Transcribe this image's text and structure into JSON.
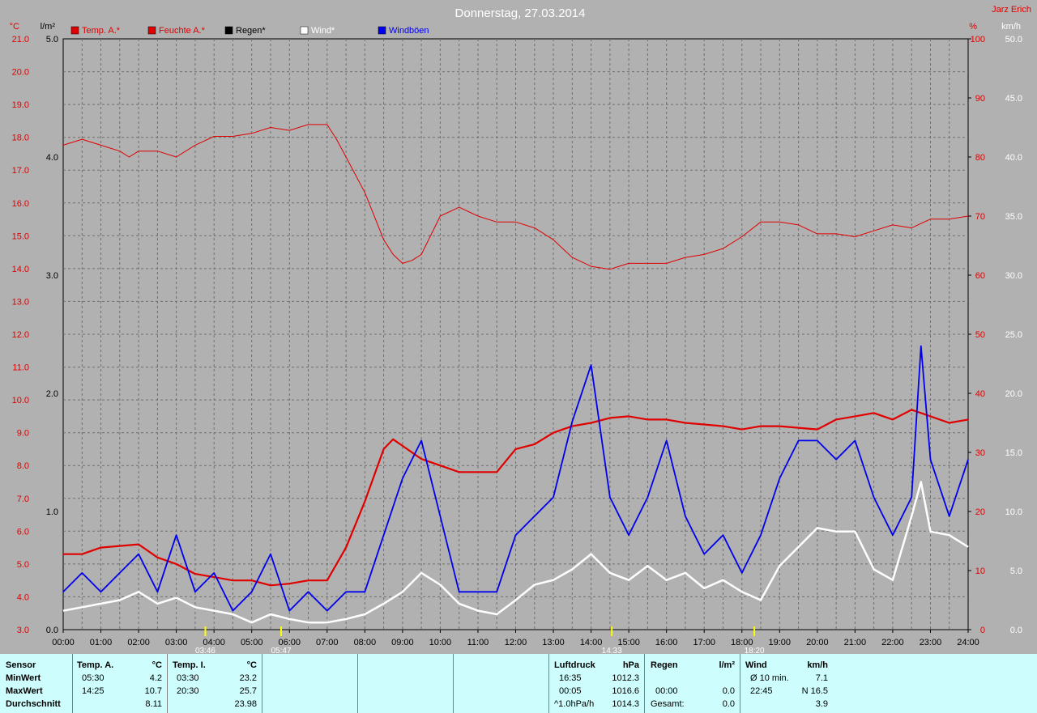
{
  "header": {
    "title": "Donnerstag, 27.03.2014",
    "author": "Jarz Erich"
  },
  "colors": {
    "background": "#b1b1b1",
    "temp": "#e00000",
    "humidity": "#e00000",
    "rain": "#000000",
    "wind": "#ffffff",
    "gusts": "#0000ee",
    "table_bg": "#cdfdfd"
  },
  "chart_data": {
    "type": "line",
    "grid": true,
    "x": {
      "ticks": [
        "00:00",
        "01:00",
        "02:00",
        "03:00",
        "04:00",
        "05:00",
        "06:00",
        "07:00",
        "08:00",
        "09:00",
        "10:00",
        "11:00",
        "12:00",
        "13:00",
        "14:00",
        "15:00",
        "16:00",
        "17:00",
        "18:00",
        "19:00",
        "20:00",
        "21:00",
        "22:00",
        "23:00",
        "24:00"
      ],
      "range": [
        0,
        24
      ]
    },
    "axes": {
      "temp": {
        "unit": "°C",
        "range": [
          3.0,
          21.0
        ],
        "ticks": [
          "3.0",
          "4.0",
          "5.0",
          "6.0",
          "7.0",
          "8.0",
          "9.0",
          "10.0",
          "11.0",
          "12.0",
          "13.0",
          "14.0",
          "15.0",
          "16.0",
          "17.0",
          "18.0",
          "19.0",
          "20.0",
          "21.0"
        ]
      },
      "rain": {
        "unit": "l/m²",
        "range": [
          0,
          5
        ],
        "ticks": [
          "0.0",
          "1.0",
          "2.0",
          "3.0",
          "4.0",
          "5.0"
        ]
      },
      "humidity": {
        "unit": "%",
        "range": [
          0,
          100
        ],
        "ticks": [
          "0",
          "10",
          "20",
          "30",
          "40",
          "50",
          "60",
          "70",
          "80",
          "90",
          "100"
        ]
      },
      "wind": {
        "unit": "km/h",
        "range": [
          0,
          50
        ],
        "ticks": [
          "0.0",
          "5.0",
          "10.0",
          "15.0",
          "20.0",
          "25.0",
          "30.0",
          "35.0",
          "40.0",
          "45.0",
          "50.0"
        ]
      }
    },
    "legend": [
      {
        "name": "Temp. A.*",
        "color": "#e00000"
      },
      {
        "name": "Feuchte A.*",
        "color": "#e00000"
      },
      {
        "name": "Regen*",
        "color": "#000000"
      },
      {
        "name": "Wind*",
        "color": "#ffffff"
      },
      {
        "name": "Windböen",
        "color": "#0000ee"
      }
    ],
    "series": [
      {
        "name": "Feuchte A.*",
        "axis": "humidity",
        "x": [
          0,
          0.5,
          1,
          1.5,
          1.75,
          2,
          2.5,
          3,
          3.5,
          4,
          4.5,
          5,
          5.5,
          6,
          6.5,
          7,
          7.25,
          7.5,
          8,
          8.5,
          8.75,
          9,
          9.25,
          9.5,
          10,
          10.5,
          11,
          11.5,
          12,
          12.5,
          13,
          13.5,
          14,
          14.5,
          15,
          15.5,
          16,
          16.5,
          17,
          17.5,
          18,
          18.5,
          19,
          19.5,
          20,
          20.5,
          21,
          21.5,
          22,
          22.5,
          23,
          23.5,
          24
        ],
        "y": [
          82,
          83,
          82,
          81,
          80,
          81,
          81,
          80,
          82,
          83.5,
          83.5,
          84,
          85,
          84.5,
          85.5,
          85.5,
          83,
          80,
          74,
          66,
          63.5,
          62,
          62.5,
          63.5,
          70,
          71.5,
          70,
          69,
          69,
          68,
          66,
          63,
          61.5,
          61,
          62,
          62,
          62,
          63,
          63.5,
          64.5,
          66.5,
          69,
          69,
          68.5,
          67,
          67,
          66.5,
          67.5,
          68.5,
          68,
          69.5,
          69.5,
          70
        ]
      },
      {
        "name": "Temp. A.*",
        "axis": "temp",
        "x": [
          0,
          0.5,
          1,
          1.5,
          2,
          2.5,
          3,
          3.5,
          4,
          4.5,
          5,
          5.5,
          6,
          6.5,
          7,
          7.5,
          8,
          8.5,
          8.75,
          9,
          9.5,
          10,
          10.5,
          11,
          11.5,
          12,
          12.5,
          13,
          13.5,
          14,
          14.5,
          15,
          15.5,
          16,
          16.5,
          17,
          17.5,
          18,
          18.5,
          19,
          19.5,
          20,
          20.5,
          21,
          21.5,
          22,
          22.5,
          23,
          23.5,
          24
        ],
        "y": [
          5.3,
          5.3,
          5.5,
          5.55,
          5.6,
          5.2,
          5.0,
          4.7,
          4.6,
          4.5,
          4.5,
          4.35,
          4.4,
          4.5,
          4.5,
          5.5,
          6.9,
          8.5,
          8.8,
          8.6,
          8.2,
          8.0,
          7.8,
          7.8,
          7.8,
          8.5,
          8.65,
          9.0,
          9.2,
          9.3,
          9.45,
          9.5,
          9.4,
          9.4,
          9.3,
          9.25,
          9.2,
          9.1,
          9.2,
          9.2,
          9.15,
          9.1,
          9.4,
          9.5,
          9.6,
          9.4,
          9.7,
          9.5,
          9.3,
          9.4
        ]
      },
      {
        "name": "Windböen",
        "axis": "wind",
        "x": [
          0,
          0.5,
          1,
          1.5,
          2,
          2.5,
          3,
          3.5,
          4,
          4.5,
          5,
          5.5,
          6,
          6.5,
          7,
          7.5,
          8,
          8.5,
          9,
          9.5,
          10,
          10.5,
          11,
          11.5,
          12,
          12.5,
          13,
          13.5,
          14,
          14.5,
          15,
          15.5,
          16,
          16.5,
          17,
          17.5,
          18,
          18.5,
          19,
          19.5,
          20,
          20.5,
          21,
          21.5,
          22,
          22.5,
          22.75,
          23,
          23.5,
          24
        ],
        "y": [
          3.2,
          4.8,
          3.2,
          4.8,
          6.4,
          3.2,
          8.0,
          3.2,
          4.8,
          1.6,
          3.2,
          6.4,
          1.6,
          3.2,
          1.6,
          3.2,
          3.2,
          8.0,
          12.8,
          16.0,
          9.6,
          3.2,
          3.2,
          3.2,
          8.0,
          9.6,
          11.2,
          17.6,
          22.4,
          11.2,
          8.0,
          11.2,
          16.0,
          9.6,
          6.4,
          8.0,
          4.8,
          8.0,
          12.8,
          16.0,
          16.0,
          14.4,
          16.0,
          11.2,
          8.0,
          11.2,
          24.0,
          14.4,
          9.6,
          14.4
        ]
      },
      {
        "name": "Wind*",
        "axis": "wind",
        "x": [
          0,
          0.5,
          1,
          1.5,
          2,
          2.5,
          3,
          3.5,
          4,
          4.5,
          5,
          5.5,
          6,
          6.5,
          7,
          7.5,
          8,
          8.5,
          9,
          9.5,
          10,
          10.5,
          11,
          11.5,
          12,
          12.5,
          13,
          13.5,
          14,
          14.5,
          15,
          15.5,
          16,
          16.5,
          17,
          17.5,
          18,
          18.5,
          19,
          19.5,
          20,
          20.5,
          21,
          21.5,
          22,
          22.5,
          22.75,
          23,
          23.5,
          24
        ],
        "y": [
          1.6,
          1.9,
          2.2,
          2.5,
          3.2,
          2.2,
          2.7,
          1.9,
          1.6,
          1.3,
          0.6,
          1.3,
          0.9,
          0.6,
          0.6,
          0.9,
          1.3,
          2.2,
          3.2,
          4.8,
          3.8,
          2.2,
          1.6,
          1.3,
          2.5,
          3.8,
          4.2,
          5.1,
          6.4,
          4.8,
          4.2,
          5.4,
          4.2,
          4.8,
          3.5,
          4.2,
          3.2,
          2.5,
          5.4,
          7.0,
          8.6,
          8.3,
          8.3,
          5.1,
          4.2,
          9.6,
          12.5,
          8.3,
          8.0,
          7.0
        ]
      }
    ],
    "markers": [
      {
        "label": "03:46",
        "hour": 3.77
      },
      {
        "label": "05:47",
        "hour": 5.78
      },
      {
        "label": "14:33",
        "hour": 14.55
      },
      {
        "label": "18:20",
        "hour": 18.33
      }
    ]
  },
  "table": {
    "sensor": {
      "header": "Sensor",
      "rows": [
        "MinWert",
        "MaxWert",
        "Durchschnitt"
      ]
    },
    "temp_a": {
      "header": "Temp. A.",
      "unit": "°C",
      "min_time": "05:30",
      "min": "4.2",
      "max_time": "14:25",
      "max": "10.7",
      "avg": "8.11"
    },
    "temp_i": {
      "header": "Temp. I.",
      "unit": "°C",
      "min_time": "03:30",
      "min": "23.2",
      "max_time": "20:30",
      "max": "25.7",
      "avg": "23.98"
    },
    "pressure": {
      "header": "Luftdruck",
      "unit": "hPa",
      "r1_time": "16:35",
      "r1": "1012.3",
      "r2_time": "00:05",
      "r2": "1016.6",
      "r3_time": "^1.0hPa/h",
      "r3": "1014.3"
    },
    "rain": {
      "header": "Regen",
      "unit": "l/m²",
      "r2_time": "00:00",
      "r2": "0.0",
      "r3_label": "Gesamt:",
      "r3": "0.0"
    },
    "wind": {
      "header": "Wind",
      "unit": "km/h",
      "r1_label": "Ø 10 min.",
      "r1": "7.1",
      "r2_time": "22:45",
      "r2": "N 16.5",
      "r3": "3.9"
    }
  }
}
